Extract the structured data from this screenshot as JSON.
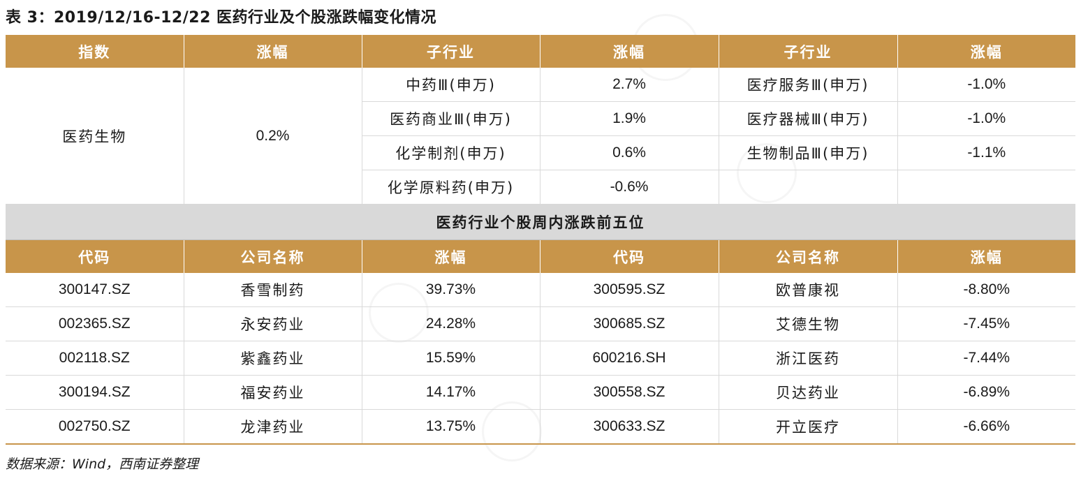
{
  "title": "表 3：2019/12/16-12/22 医药行业及个股涨跌幅变化情况",
  "top_table": {
    "headers": [
      "指数",
      "涨幅",
      "子行业",
      "涨幅",
      "子行业",
      "涨幅"
    ],
    "index_name": "医药生物",
    "index_change": "0.2%",
    "rows": [
      {
        "sub1": "中药Ⅲ(申万)",
        "chg1": "2.7%",
        "sub2": "医疗服务Ⅲ(申万)",
        "chg2": "-1.0%"
      },
      {
        "sub1": "医药商业Ⅲ(申万)",
        "chg1": "1.9%",
        "sub2": "医疗器械Ⅲ(申万)",
        "chg2": "-1.0%"
      },
      {
        "sub1": "化学制剂(申万)",
        "chg1": "0.6%",
        "sub2": "生物制品Ⅲ(申万)",
        "chg2": "-1.1%"
      },
      {
        "sub1": "化学原料药(申万)",
        "chg1": "-0.6%",
        "sub2": "",
        "chg2": ""
      }
    ]
  },
  "section_title": "医药行业个股周内涨跌前五位",
  "bottom_table": {
    "headers": [
      "代码",
      "公司名称",
      "涨幅",
      "代码",
      "公司名称",
      "涨幅"
    ],
    "rows": [
      {
        "code1": "300147.SZ",
        "name1": "香雪制药",
        "chg1": "39.73%",
        "code2": "300595.SZ",
        "name2": "欧普康视",
        "chg2": "-8.80%"
      },
      {
        "code1": "002365.SZ",
        "name1": "永安药业",
        "chg1": "24.28%",
        "code2": "300685.SZ",
        "name2": "艾德生物",
        "chg2": "-7.45%"
      },
      {
        "code1": "002118.SZ",
        "name1": "紫鑫药业",
        "chg1": "15.59%",
        "code2": "600216.SH",
        "name2": "浙江医药",
        "chg2": "-7.44%"
      },
      {
        "code1": "300194.SZ",
        "name1": "福安药业",
        "chg1": "14.17%",
        "code2": "300558.SZ",
        "name2": "贝达药业",
        "chg2": "-6.89%"
      },
      {
        "code1": "002750.SZ",
        "name1": "龙津药业",
        "chg1": "13.75%",
        "code2": "300633.SZ",
        "name2": "开立医疗",
        "chg2": "-6.66%"
      }
    ]
  },
  "source": "数据来源：Wind，西南证券整理",
  "colors": {
    "header_bg": "#c8954a",
    "section_bg": "#d9d9d9"
  }
}
